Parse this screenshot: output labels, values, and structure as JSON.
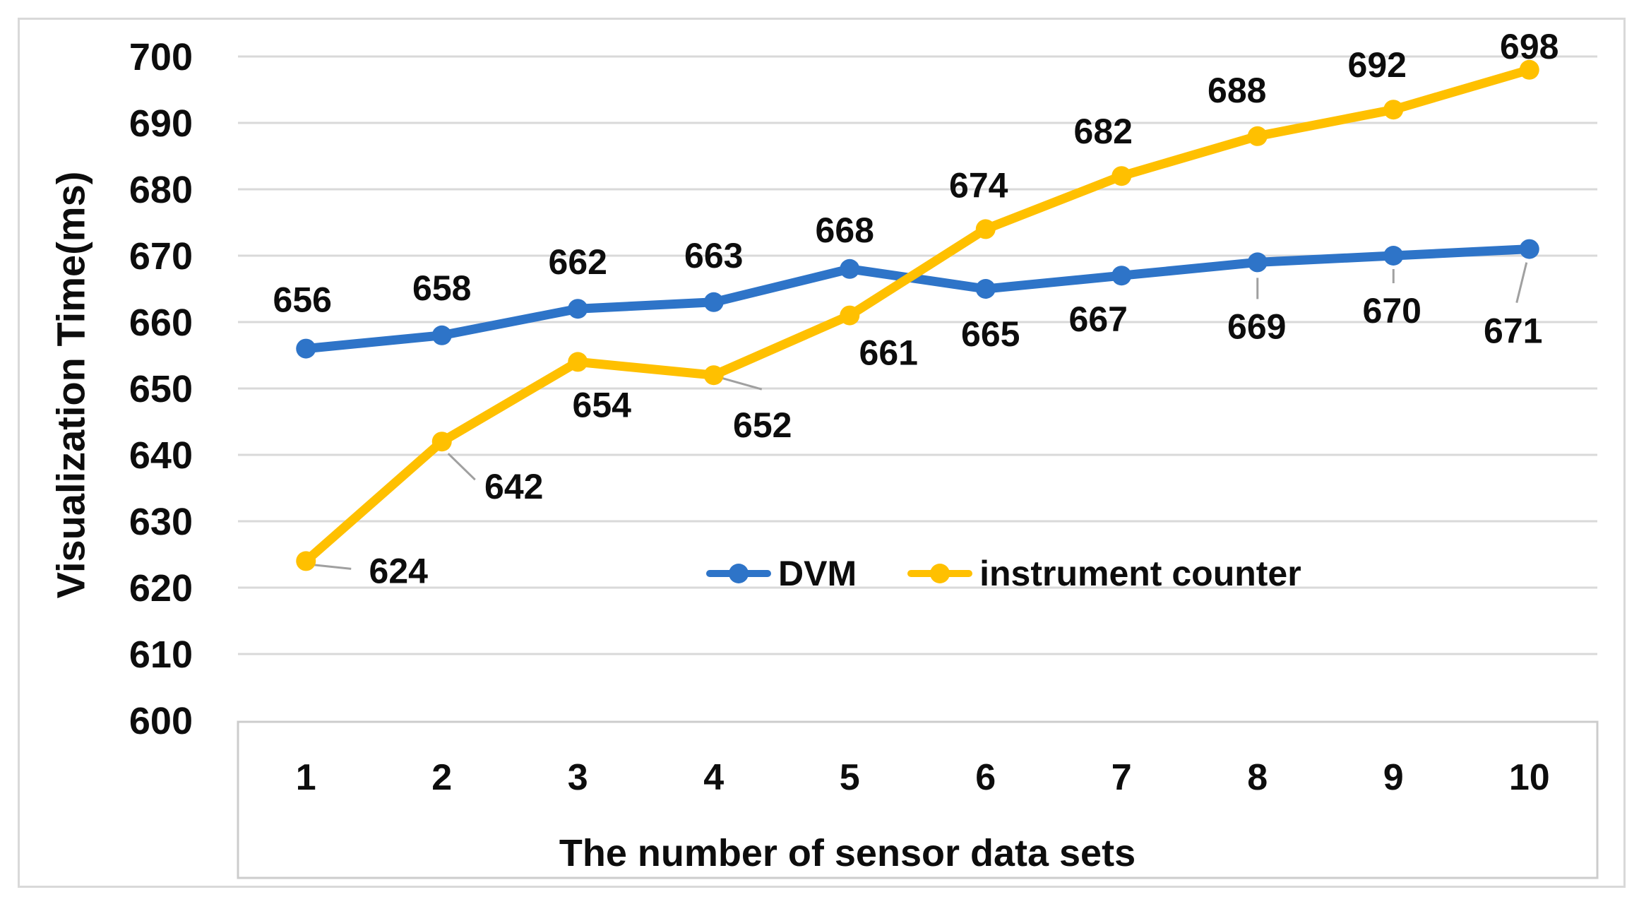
{
  "chart_data": {
    "type": "line",
    "title": "",
    "xlabel": "The number of sensor data sets",
    "ylabel": "Visualization Time(ms)",
    "categories": [
      "1",
      "2",
      "3",
      "4",
      "5",
      "6",
      "7",
      "8",
      "9",
      "10"
    ],
    "ylim": [
      600,
      700
    ],
    "ytick_step": 10,
    "grid": true,
    "legend_position": "inside-bottom-center",
    "colors": {
      "gridline": "#d9d9d9",
      "axis_box_border": "#cccccc",
      "leader_line": "#a0a0a0",
      "label_text": "#0d0d0d"
    },
    "series": [
      {
        "name": "DVM",
        "color": "#2e74c8",
        "values": [
          656,
          658,
          662,
          663,
          668,
          665,
          667,
          669,
          670,
          671
        ],
        "label_offsets": [
          [
            -5,
            -69
          ],
          [
            0,
            -67
          ],
          [
            0,
            -66
          ],
          [
            0,
            -66
          ],
          [
            -7,
            -55
          ],
          [
            7,
            64
          ],
          [
            -33,
            62
          ],
          [
            -1,
            91
          ],
          [
            -2,
            78
          ],
          [
            -23,
            116
          ]
        ],
        "leaders": [
          null,
          null,
          null,
          null,
          null,
          null,
          null,
          [
            0,
            22,
            0,
            52
          ],
          [
            0,
            19,
            0,
            39
          ],
          [
            -4,
            19,
            -18,
            76
          ]
        ]
      },
      {
        "name": "instrument counter",
        "color": "#ffc000",
        "values": [
          624,
          642,
          654,
          652,
          661,
          674,
          682,
          688,
          692,
          698
        ],
        "label_offsets": [
          [
            131,
            14
          ],
          [
            102,
            64
          ],
          [
            34,
            61
          ],
          [
            69,
            71
          ],
          [
            55,
            53
          ],
          [
            -10,
            -62
          ],
          [
            -26,
            -63
          ],
          [
            -29,
            -65
          ],
          [
            -23,
            -63
          ],
          [
            0,
            -33
          ]
        ],
        "leaders": [
          [
            7,
            5,
            64,
            11
          ],
          [
            9,
            17,
            47,
            54
          ],
          null,
          [
            4,
            2,
            68,
            20
          ],
          null,
          null,
          null,
          null,
          null,
          null
        ]
      }
    ]
  }
}
